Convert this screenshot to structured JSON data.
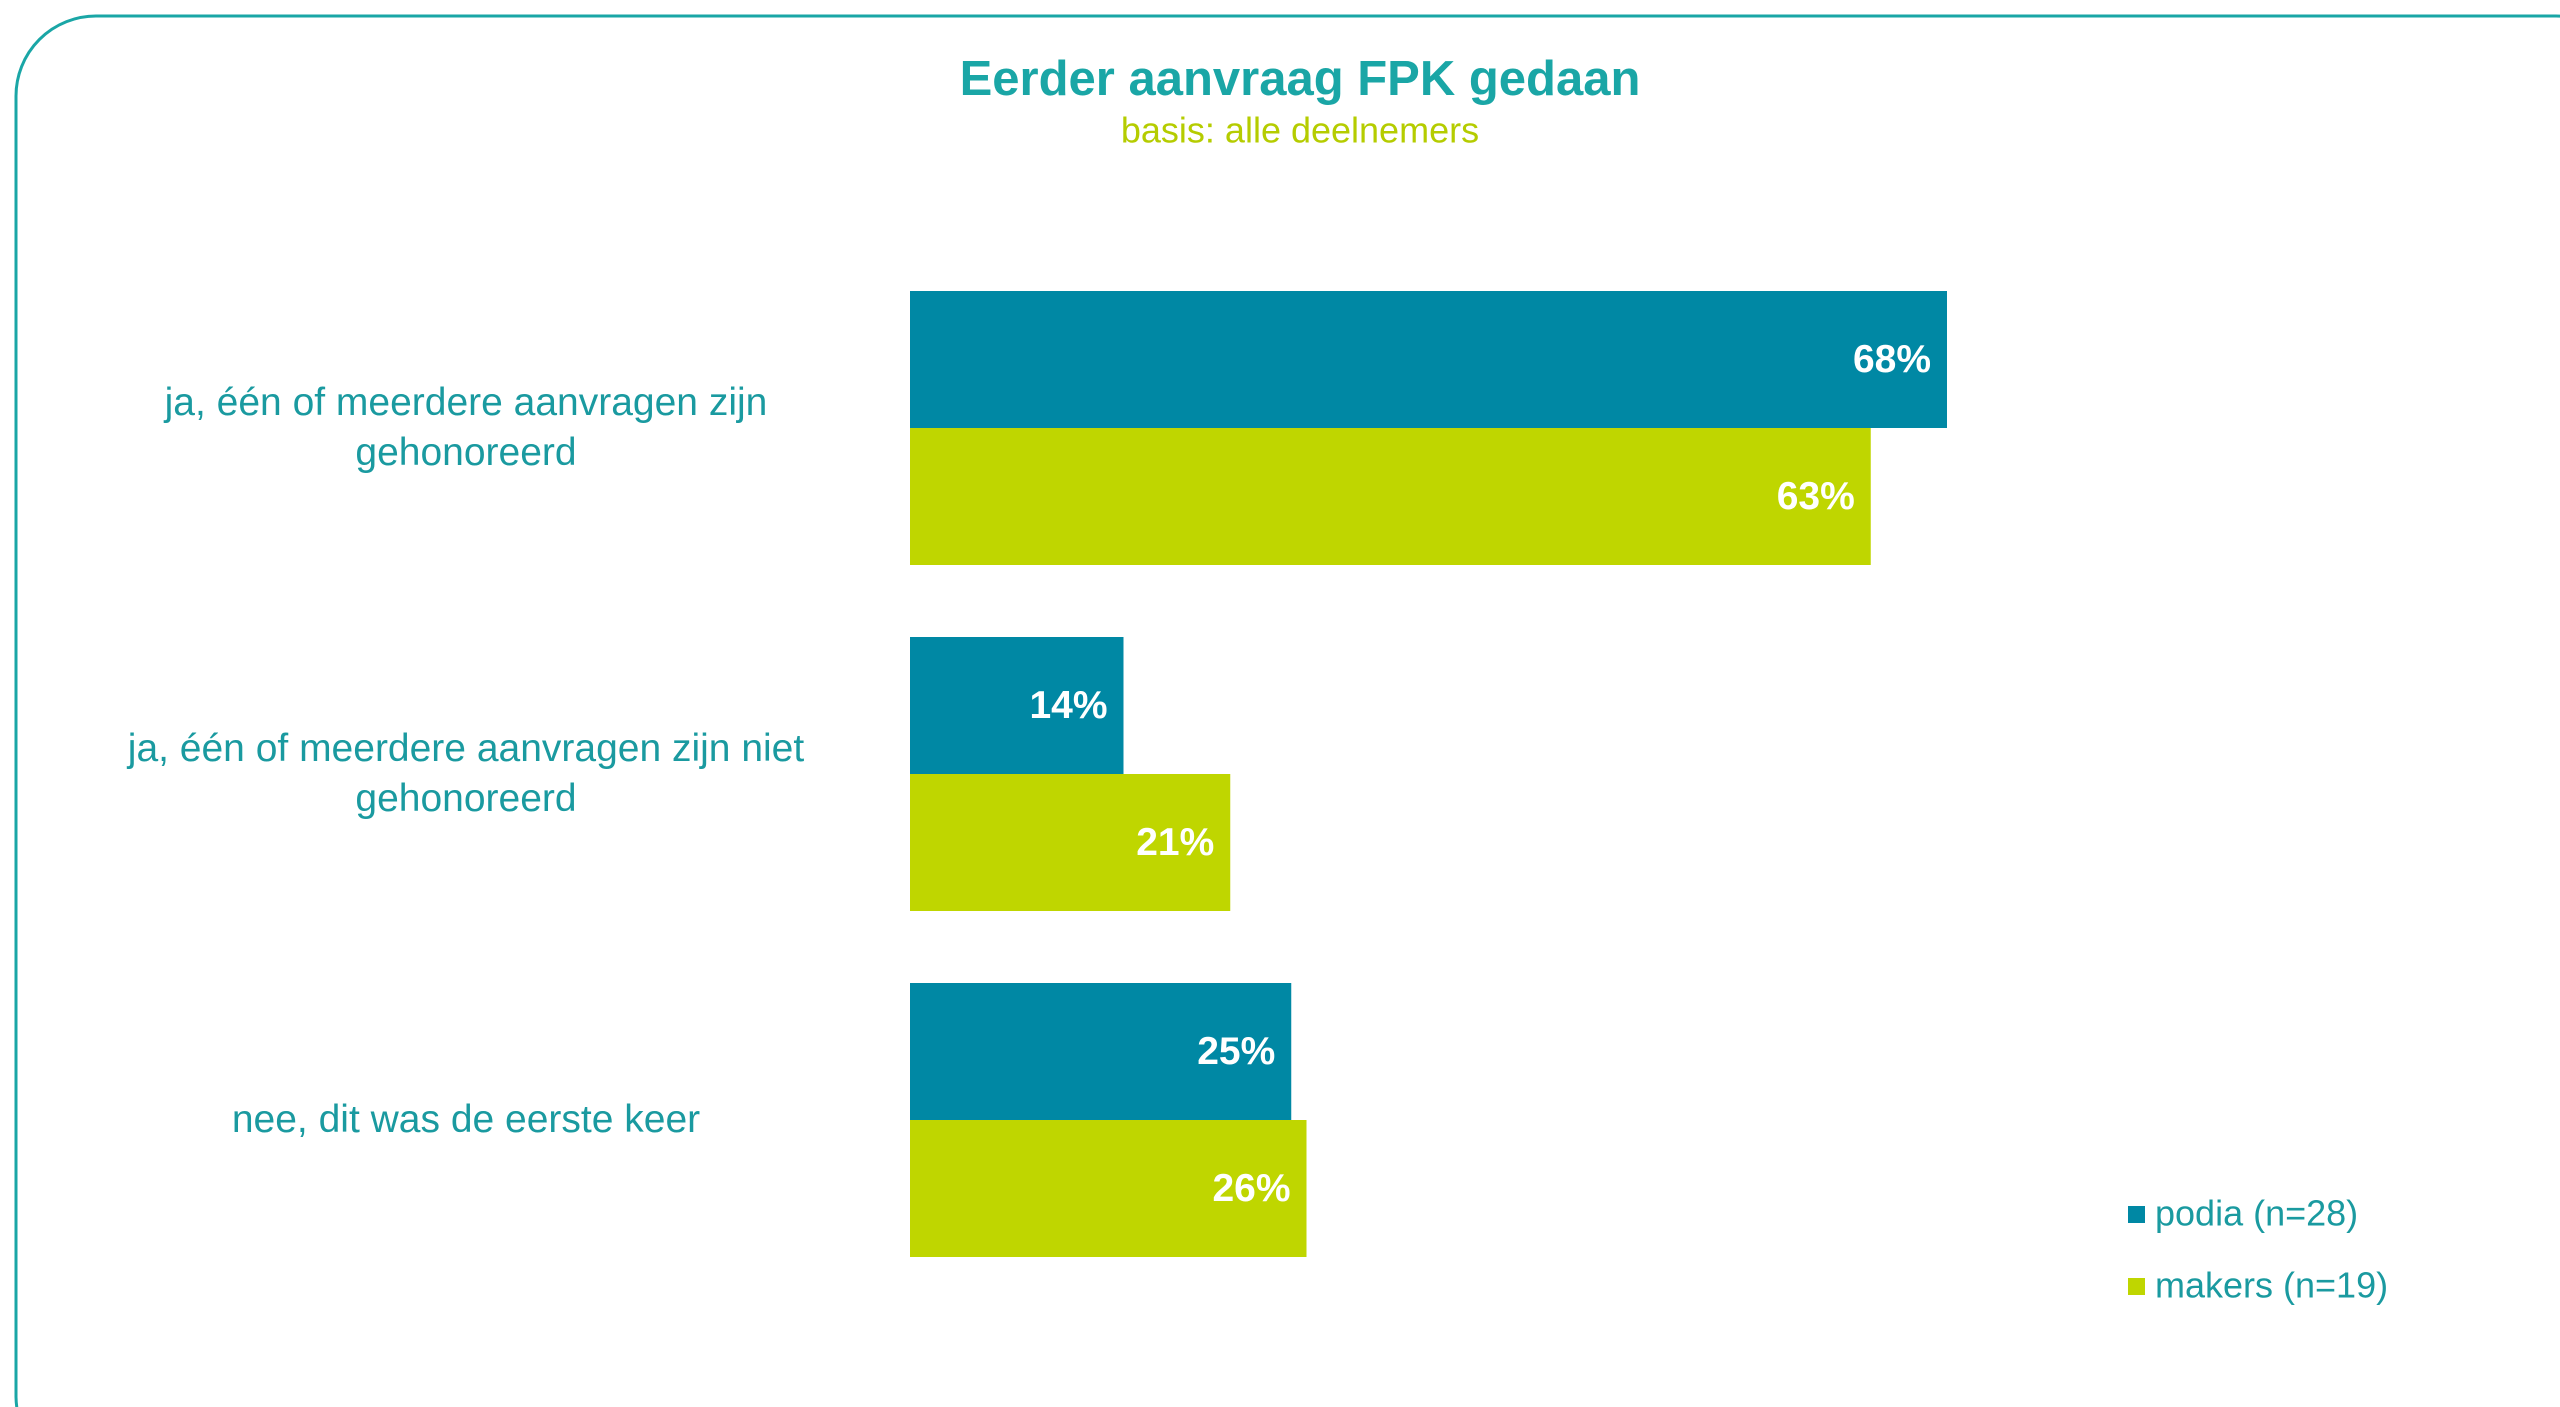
{
  "chart_data": {
    "type": "hbar",
    "title": "Eerder aanvraag FPK gedaan",
    "subtitle": "basis: alle deelnemers",
    "categories": [
      "ja, één of meerdere aanvragen zijn gehonoreerd",
      "ja, één of meerdere aanvragen zijn niet gehonoreerd",
      "nee, dit was de eerste keer"
    ],
    "series": [
      {
        "name": "podia (n=28)",
        "color": "#0088a4",
        "values": [
          68,
          14,
          25
        ],
        "value_labels": [
          "68%",
          "14%",
          "25%"
        ]
      },
      {
        "name": "makers (n=19)",
        "color": "#bfd600",
        "values": [
          63,
          21,
          26
        ],
        "value_labels": [
          "63%",
          "21%",
          "26%"
        ]
      }
    ],
    "xlim": [
      0,
      100
    ],
    "legend": "bottom-right"
  }
}
